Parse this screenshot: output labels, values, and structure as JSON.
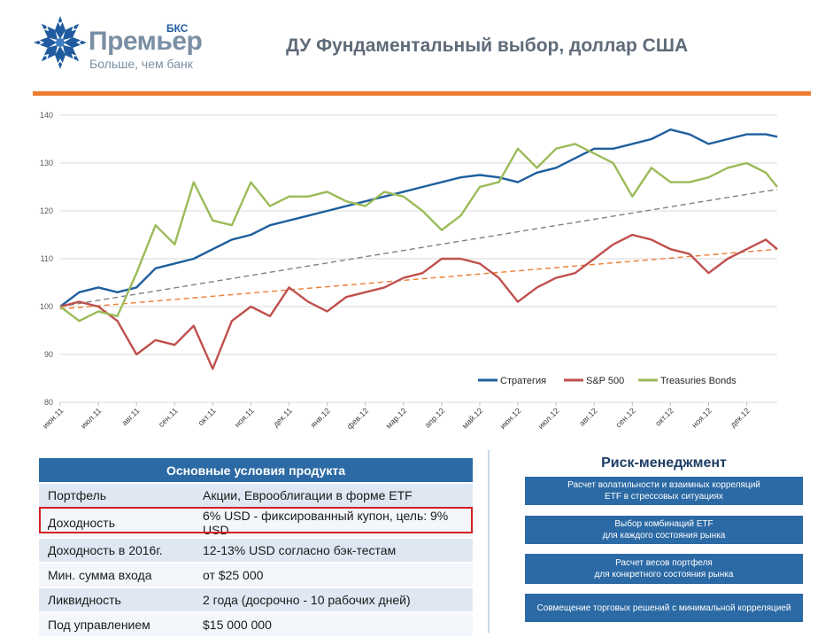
{
  "header": {
    "brand_name": "Премьер",
    "brand_sub": "БКС",
    "brand_tagline": "Больше, чем банк",
    "page_title": "ДУ Фундаментальный выбор, доллар США",
    "accent_color": "#ED7D31"
  },
  "chart_data": {
    "type": "line",
    "title": "",
    "xlabel": "",
    "ylabel": "",
    "ylim": [
      80,
      140
    ],
    "yticks": [
      80,
      90,
      100,
      110,
      120,
      130,
      140
    ],
    "grid": true,
    "legend_position": "bottom-right",
    "x_ticks": [
      "июн.11",
      "июл.11",
      "авг.11",
      "сен.11",
      "окт.11",
      "ноя.11",
      "дек.11",
      "янв.12",
      "фев.12",
      "мар.12",
      "апр.12",
      "май.12",
      "июн.12",
      "июл.12",
      "авг.12",
      "сен.12",
      "окт.12",
      "ноя.12",
      "дек.12"
    ],
    "x_months": [
      0,
      0.5,
      1,
      1.5,
      2,
      2.5,
      3,
      3.5,
      4,
      4.5,
      5,
      5.5,
      6,
      6.5,
      7,
      7.5,
      8,
      8.5,
      9,
      9.5,
      10,
      10.5,
      11,
      11.5,
      12,
      12.5,
      13,
      13.5,
      14,
      14.5,
      15,
      15.5,
      16,
      16.5,
      17,
      17.5,
      18,
      18.5,
      18.8
    ],
    "series": [
      {
        "name": "Стратегия",
        "color": "#1F5F9E",
        "values": [
          100,
          103,
          104,
          103,
          104,
          108,
          109,
          110,
          112,
          114,
          115,
          117,
          118,
          119,
          120,
          121,
          122,
          123,
          124,
          125,
          126,
          127,
          127.5,
          127,
          126,
          128,
          129,
          131,
          133,
          133,
          134,
          135,
          137,
          136,
          134,
          135,
          136,
          136,
          135.5
        ]
      },
      {
        "name": "S&P 500",
        "color": "#C0504D",
        "values": [
          100,
          101,
          100,
          97,
          90,
          93,
          92,
          96,
          87,
          97,
          100,
          98,
          104,
          101,
          99,
          102,
          103,
          104,
          106,
          107,
          110,
          110,
          109,
          106,
          101,
          104,
          106,
          107,
          110,
          113,
          115,
          114,
          112,
          111,
          107,
          110,
          112,
          114,
          112
        ]
      },
      {
        "name": "Treasuries Bonds",
        "color": "#9BBB59",
        "values": [
          100,
          97,
          99,
          98,
          107,
          117,
          113,
          126,
          118,
          117,
          126,
          121,
          123,
          123,
          124,
          122,
          121,
          124,
          123,
          120,
          116,
          119,
          125,
          126,
          133,
          129,
          133,
          134,
          132,
          130,
          123,
          129,
          126,
          126,
          127,
          129,
          130,
          128,
          125
        ]
      }
    ],
    "trendlines": [
      {
        "color": "#808080",
        "from": [
          0,
          100
        ],
        "to": [
          18.8,
          124.5
        ]
      },
      {
        "color": "#ED7D31",
        "from": [
          0,
          99.5
        ],
        "to": [
          18.8,
          112
        ]
      }
    ]
  },
  "product_table": {
    "header": "Основные условия продукта",
    "header_color": "#2C6AA5",
    "rows": [
      {
        "label": "Портфель",
        "value": "Акции, Еврооблигации в форме ETF"
      },
      {
        "label": "Доходность",
        "value": "6% USD - фиксированный купон, цель: 9% USD"
      },
      {
        "label": "Доходность в 2016г.",
        "value": "12-13% USD согласно бэк-тестам"
      },
      {
        "label": "Мин. сумма входа",
        "value": "от $25 000"
      },
      {
        "label": "Ликвидность",
        "value": "2 года (досрочно - 10 рабочих дней)"
      },
      {
        "label": "Под управлением",
        "value": "$15 000 000"
      }
    ],
    "highlight_color": "#D42025"
  },
  "risk": {
    "title": "Риск-менеджмент",
    "items": [
      {
        "line1": "Расчет волатильности и взаимных корреляций",
        "line2": "ETF в стрессовых ситуациях"
      },
      {
        "line1": "Выбор комбинаций  ETF",
        "line2": "для каждого состояния  рынка"
      },
      {
        "line1": "Расчет весов портфеля",
        "line2": "для конкретного  состояния рынка"
      },
      {
        "line1": "Совмещение  торговых решений с минимальной  корреляцией",
        "line2": ""
      }
    ]
  }
}
